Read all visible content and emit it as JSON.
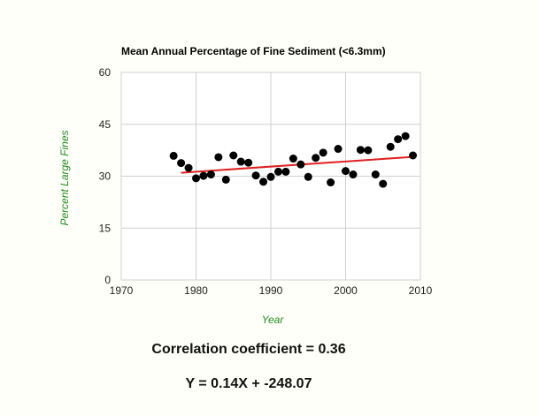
{
  "chart_data": {
    "type": "scatter",
    "title": "Mean Annual Percentage of Fine Sediment (<6.3mm)",
    "xlabel": "Year",
    "ylabel": "Percent Large Fines",
    "xlim": [
      1970,
      2010
    ],
    "ylim": [
      0,
      60
    ],
    "x_ticks": [
      1970,
      1980,
      1990,
      2000,
      2010
    ],
    "y_ticks": [
      0,
      15,
      30,
      45,
      60
    ],
    "grid": true,
    "series": [
      {
        "points": [
          [
            1977,
            35.9
          ],
          [
            1978,
            33.8
          ],
          [
            1979,
            32.4
          ],
          [
            1980,
            29.4
          ],
          [
            1981,
            30.1
          ],
          [
            1982,
            30.5
          ],
          [
            1983,
            35.5
          ],
          [
            1984,
            29.0
          ],
          [
            1985,
            36.0
          ],
          [
            1986,
            34.2
          ],
          [
            1987,
            33.9
          ],
          [
            1988,
            30.2
          ],
          [
            1989,
            28.4
          ],
          [
            1990,
            29.8
          ],
          [
            1991,
            31.3
          ],
          [
            1992,
            31.3
          ],
          [
            1993,
            35.1
          ],
          [
            1994,
            33.4
          ],
          [
            1995,
            29.8
          ],
          [
            1996,
            35.3
          ],
          [
            1997,
            36.8
          ],
          [
            1998,
            28.2
          ],
          [
            1999,
            37.9
          ],
          [
            2000,
            31.5
          ],
          [
            2001,
            30.5
          ],
          [
            2002,
            37.6
          ],
          [
            2003,
            37.5
          ],
          [
            2004,
            30.5
          ],
          [
            2005,
            27.8
          ],
          [
            2006,
            38.5
          ],
          [
            2007,
            40.7
          ],
          [
            2008,
            41.6
          ],
          [
            2009,
            36.0
          ]
        ],
        "color": "#000000"
      }
    ],
    "trendline": {
      "x": [
        1978,
        2009
      ],
      "y": [
        31.0,
        35.6
      ],
      "color": "#e02020"
    }
  },
  "stats": {
    "correlation": "Correlation coefficient = 0.36",
    "equation": "Y = 0.14X + -248.07"
  },
  "colors": {
    "axis_label": "#1f8a1f",
    "grid": "#d0d0d0",
    "trend": "#e02020"
  }
}
